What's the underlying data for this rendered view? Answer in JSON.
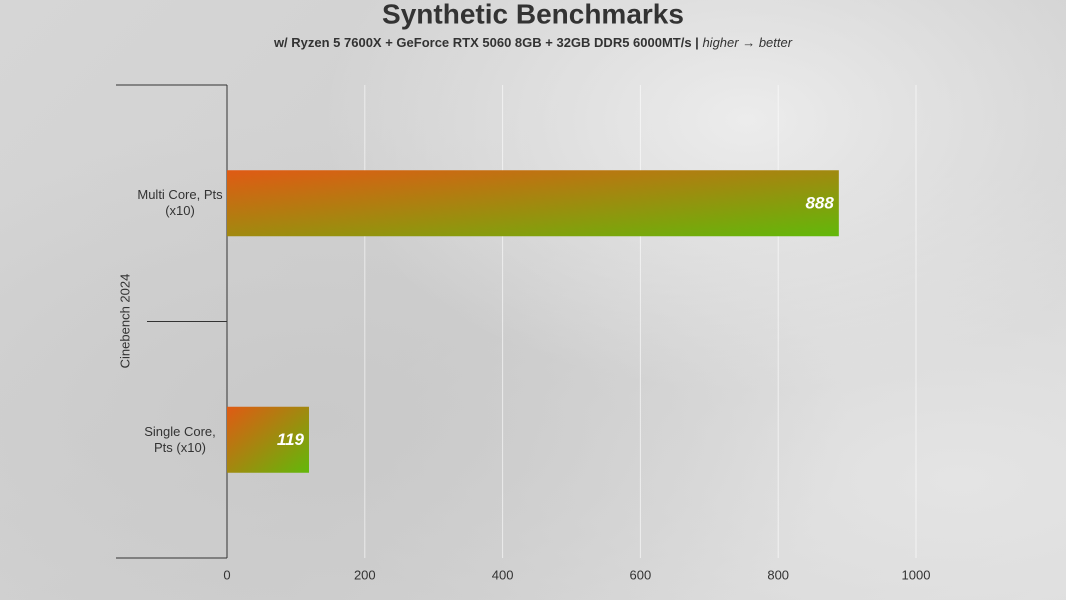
{
  "chart_data": {
    "type": "hbar",
    "title": "Synthetic Benchmarks",
    "subtitle": [
      "w/ Ryzen 5 7600X + GeForce RTX 5060 8GB + 32GB DDR5 6000MT/s |",
      "higher → better"
    ],
    "group": "Cinebench 2024",
    "categories": [
      "Multi Core, Pts (x10)",
      "Single Core, Pts (x10)"
    ],
    "values": [
      888,
      119
    ],
    "colors": [
      "#e05a14",
      "#62b80a"
    ],
    "xlim": [
      0,
      1000
    ],
    "xticks": [
      0,
      200,
      400,
      600,
      800,
      1000
    ],
    "grid": true
  }
}
